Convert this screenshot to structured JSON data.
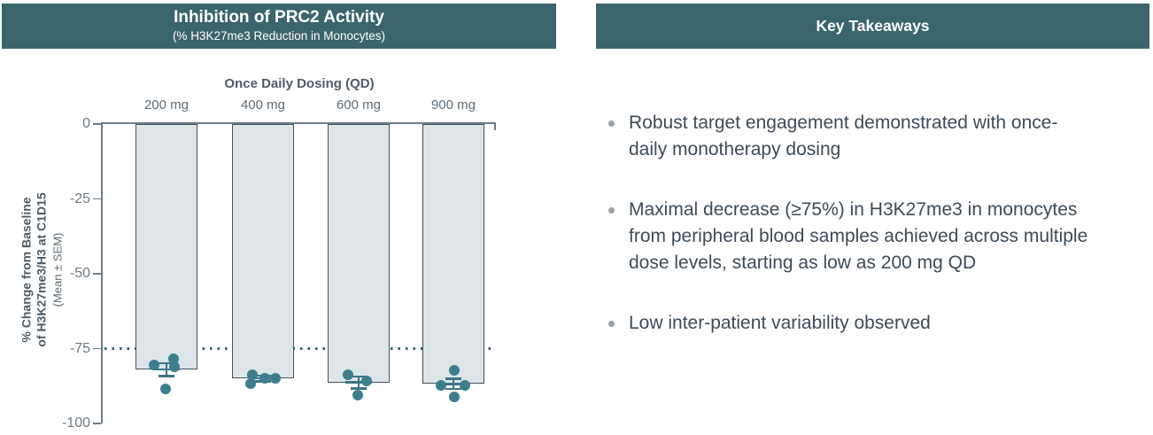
{
  "left_panel": {
    "header": {
      "title": "Inhibition of PRC2 Activity",
      "subtitle": "(% H3K27me3 Reduction in Monocytes)"
    }
  },
  "right_panel": {
    "header": {
      "title": "Key Takeaways"
    },
    "bullets": [
      "Robust target engagement demonstrated with once-\ndaily monotherapy dosing",
      "Maximal decrease (≥75%) in H3K27me3 in monocytes\nfrom peripheral blood samples achieved across multiple\ndose levels, starting as low as 200 mg QD",
      "Low inter-patient variability observed"
    ]
  },
  "chart_data": {
    "type": "bar",
    "title": "Once Daily Dosing (QD)",
    "categories": [
      "200 mg",
      "400 mg",
      "600 mg",
      "900 mg"
    ],
    "series": [
      {
        "name": "Mean % change from baseline",
        "values": [
          -82,
          -85,
          -86.3,
          -86.8
        ]
      }
    ],
    "sem": [
      2.2,
      0.9,
      2.0,
      1.7
    ],
    "points": [
      [
        {
          "v": -78.3,
          "dx": 8
        },
        {
          "v": -80.4,
          "dx": -14
        },
        {
          "v": -81.0,
          "dx": 9
        },
        {
          "v": -88.6,
          "dx": -1
        }
      ],
      [
        {
          "v": -83.6,
          "dx": -12
        },
        {
          "v": -84.9,
          "dx": 2
        },
        {
          "v": -84.9,
          "dx": 14
        },
        {
          "v": -86.6,
          "dx": -14
        }
      ],
      [
        {
          "v": -83.6,
          "dx": -12
        },
        {
          "v": -85.9,
          "dx": 9
        },
        {
          "v": -90.6,
          "dx": -1
        }
      ],
      [
        {
          "v": -82.3,
          "dx": 1
        },
        {
          "v": -87.4,
          "dx": -14
        },
        {
          "v": -87.4,
          "dx": 13
        },
        {
          "v": -91.0,
          "dx": 1
        }
      ]
    ],
    "ylabel": "% Change from Baseline\nof H3K27me3/H3 at C1D15",
    "ylabel_note": "(Mean ± SEM)",
    "yticks": [
      0,
      -25,
      -50,
      -75,
      -100
    ],
    "ylim": [
      -100,
      0
    ],
    "reference_line": -75,
    "grid": false,
    "legend": "none",
    "colors": {
      "header_bg": "#3b656c",
      "header_text": "#ffffff",
      "bar_fill": "#dce5e8",
      "bar_border": "#44535d",
      "point": "#3d7e8e",
      "error_bar": "#3f7484",
      "reference_line": "#33616e",
      "axis": "#6e7d88",
      "tick_label": "#6e7a84",
      "axis_title": "#4d5c67",
      "bullet_text": "#3e4b57"
    }
  }
}
